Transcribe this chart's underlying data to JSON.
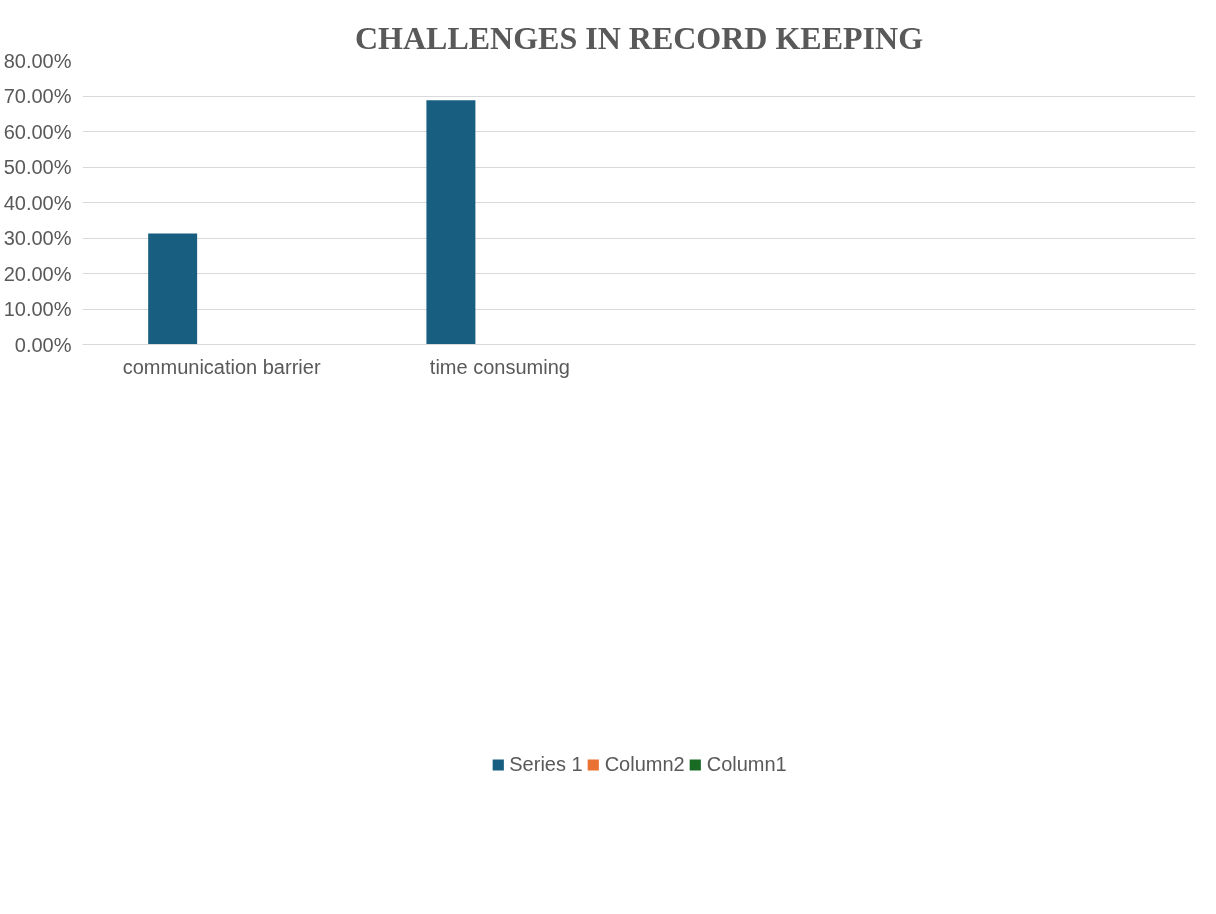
{
  "chart_data": {
    "type": "bar",
    "title": "CHALLENGES IN RECORD KEEPING",
    "categories": [
      "communication barrier",
      "time consuming",
      null,
      null
    ],
    "series": [
      {
        "name": "Series 1",
        "color": "#175e80",
        "values": [
          31.3,
          68.8,
          null,
          null
        ]
      },
      {
        "name": "Column2",
        "color": "#e97132",
        "values": [
          null,
          null,
          null,
          null
        ]
      },
      {
        "name": "Column1",
        "color": "#196b24",
        "values": [
          null,
          null,
          null,
          null
        ]
      }
    ],
    "ylim": [
      0,
      80
    ],
    "yticks": [
      {
        "value": 0,
        "label": "0.00%"
      },
      {
        "value": 10,
        "label": "10.00%"
      },
      {
        "value": 20,
        "label": "20.00%"
      },
      {
        "value": 30,
        "label": "30.00%"
      },
      {
        "value": 40,
        "label": "40.00%"
      },
      {
        "value": 50,
        "label": "50.00%"
      },
      {
        "value": 60,
        "label": "60.00%"
      },
      {
        "value": 70,
        "label": "70.00%"
      },
      {
        "value": 80,
        "label": "80.00%"
      }
    ],
    "grid": "y",
    "legend": "bottom"
  }
}
